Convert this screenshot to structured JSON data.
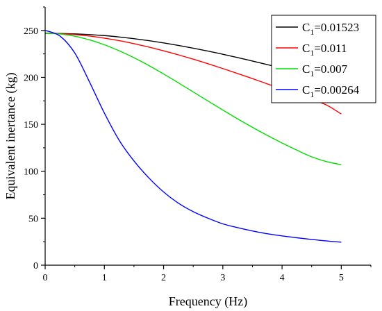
{
  "chart_data": {
    "type": "line",
    "title": "",
    "xlabel": "Frequency (Hz)",
    "ylabel": "Equivalent inertance (kg)",
    "xlim": [
      0,
      5.5
    ],
    "ylim": [
      0,
      275
    ],
    "xticks": [
      0,
      1,
      2,
      3,
      4,
      5
    ],
    "yticks": [
      0,
      50,
      100,
      150,
      200,
      250
    ],
    "x_tick_labels": [
      "0",
      "1",
      "2",
      "3",
      "4",
      "5"
    ],
    "y_tick_labels": [
      "0",
      "50",
      "100",
      "150",
      "200",
      "250"
    ],
    "grid": false,
    "legend_position": "top-right",
    "x": [
      0,
      0.25,
      0.5,
      0.75,
      1.0,
      1.25,
      1.5,
      1.75,
      2.0,
      2.25,
      2.5,
      2.75,
      3.0,
      3.25,
      3.5,
      3.75,
      4.0,
      4.25,
      4.5,
      4.75,
      5.0
    ],
    "series": [
      {
        "name_main": "C",
        "name_sub": "1",
        "name_value": "=0.01523",
        "color": "#000000",
        "values": [
          247,
          246.8,
          246.3,
          245.6,
          244.5,
          243,
          241.2,
          239.1,
          236.7,
          234,
          231.1,
          228,
          224.6,
          221.1,
          217.4,
          213.6,
          209.7,
          205.7,
          201.6,
          197.5,
          193
        ]
      },
      {
        "name_main": "C",
        "name_sub": "1",
        "name_value": "=0.011",
        "color": "#ff0000",
        "values": [
          247,
          246.6,
          245.6,
          244,
          241.8,
          239.1,
          235.9,
          232.3,
          228.3,
          224,
          219.4,
          214.5,
          209.4,
          204.1,
          198.7,
          193.1,
          187.5,
          181.8,
          176.2,
          170.6,
          161
        ]
      },
      {
        "name_main": "C",
        "name_sub": "1",
        "name_value": "=0.007",
        "color": "#00dd00",
        "values": [
          247,
          246.2,
          243.8,
          239.9,
          234.7,
          228.3,
          220.9,
          212.6,
          203.6,
          194.2,
          184.5,
          174.8,
          165.2,
          155.8,
          146.8,
          138.2,
          130.1,
          122.5,
          115.4,
          110.3,
          107
        ]
      },
      {
        "name_main": "C",
        "name_sub": "1",
        "name_value": "=0.00264",
        "color": "#0000ff",
        "values": [
          250,
          244,
          226,
          195,
          162,
          133,
          111,
          93,
          78,
          66,
          57,
          50,
          44,
          40,
          36.5,
          33.5,
          31.2,
          29.2,
          27.4,
          25.8,
          24.5
        ]
      }
    ]
  }
}
